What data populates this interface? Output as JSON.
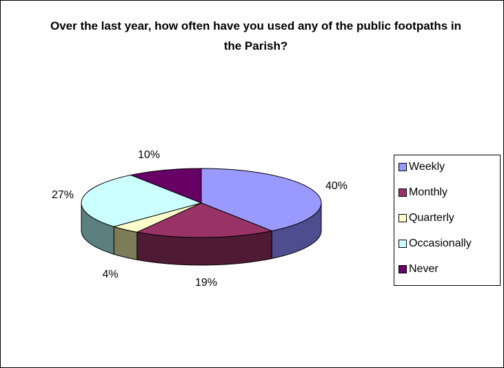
{
  "chart_data": {
    "type": "pie",
    "title": "Over the last year, how often have you used any of the public footpaths in the Parish?",
    "categories": [
      "Weekly",
      "Monthly",
      "Quarterly",
      "Occasionally",
      "Never"
    ],
    "values": [
      40,
      19,
      4,
      27,
      10
    ],
    "data_labels": [
      "40%",
      "19%",
      "4%",
      "27%",
      "10%"
    ],
    "colors": [
      "#9999FF",
      "#993366",
      "#FFFFCC",
      "#CCFFFF",
      "#660066"
    ],
    "side_colors": [
      "#4D4D8F",
      "#4F1A34",
      "#7C7C58",
      "#5C7F7F",
      "#330033"
    ],
    "legend": "right",
    "style": "3d"
  }
}
